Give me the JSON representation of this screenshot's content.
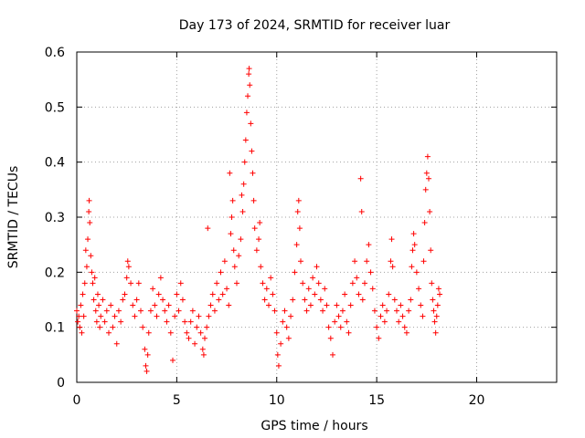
{
  "chart_data": {
    "type": "scatter",
    "title": "Day 173 of 2024, SRMTID for receiver luar",
    "xlabel": "GPS time / hours",
    "ylabel": "SRMTID / TECUs",
    "xlim": [
      0,
      24
    ],
    "ylim": [
      0,
      0.6
    ],
    "xticks": [
      0,
      5,
      10,
      15,
      20
    ],
    "xtick_labels": [
      "0",
      "5",
      "10",
      "15",
      "20"
    ],
    "yticks": [
      0,
      0.1,
      0.2,
      0.3,
      0.4,
      0.5,
      0.6
    ],
    "ytick_labels": [
      "0",
      "0.1",
      "0.2",
      "0.3",
      "0.4",
      "0.5",
      "0.6"
    ],
    "grid": true,
    "marker": "plus",
    "color": "#ff0000",
    "series": [
      {
        "name": "SRMTID",
        "points": [
          [
            0.0,
            0.13
          ],
          [
            0.05,
            0.11
          ],
          [
            0.1,
            0.12
          ],
          [
            0.15,
            0.1
          ],
          [
            0.2,
            0.14
          ],
          [
            0.25,
            0.09
          ],
          [
            0.3,
            0.16
          ],
          [
            0.35,
            0.12
          ],
          [
            0.4,
            0.18
          ],
          [
            0.45,
            0.24
          ],
          [
            0.5,
            0.21
          ],
          [
            0.55,
            0.26
          ],
          [
            0.6,
            0.31
          ],
          [
            0.62,
            0.33
          ],
          [
            0.65,
            0.29
          ],
          [
            0.7,
            0.23
          ],
          [
            0.75,
            0.2
          ],
          [
            0.8,
            0.18
          ],
          [
            0.85,
            0.15
          ],
          [
            0.9,
            0.19
          ],
          [
            0.95,
            0.13
          ],
          [
            1.0,
            0.11
          ],
          [
            1.05,
            0.16
          ],
          [
            1.1,
            0.14
          ],
          [
            1.15,
            0.1
          ],
          [
            1.2,
            0.12
          ],
          [
            1.3,
            0.15
          ],
          [
            1.4,
            0.11
          ],
          [
            1.5,
            0.13
          ],
          [
            1.6,
            0.09
          ],
          [
            1.7,
            0.14
          ],
          [
            1.8,
            0.1
          ],
          [
            1.9,
            0.12
          ],
          [
            2.0,
            0.07
          ],
          [
            2.1,
            0.13
          ],
          [
            2.2,
            0.11
          ],
          [
            2.3,
            0.15
          ],
          [
            2.4,
            0.16
          ],
          [
            2.5,
            0.19
          ],
          [
            2.55,
            0.22
          ],
          [
            2.6,
            0.21
          ],
          [
            2.7,
            0.18
          ],
          [
            2.8,
            0.14
          ],
          [
            2.9,
            0.12
          ],
          [
            3.0,
            0.15
          ],
          [
            3.1,
            0.18
          ],
          [
            3.2,
            0.13
          ],
          [
            3.3,
            0.1
          ],
          [
            3.4,
            0.06
          ],
          [
            3.45,
            0.03
          ],
          [
            3.5,
            0.02
          ],
          [
            3.55,
            0.05
          ],
          [
            3.6,
            0.09
          ],
          [
            3.7,
            0.13
          ],
          [
            3.8,
            0.17
          ],
          [
            3.9,
            0.14
          ],
          [
            4.0,
            0.12
          ],
          [
            4.1,
            0.16
          ],
          [
            4.2,
            0.19
          ],
          [
            4.3,
            0.15
          ],
          [
            4.4,
            0.13
          ],
          [
            4.5,
            0.11
          ],
          [
            4.6,
            0.14
          ],
          [
            4.7,
            0.09
          ],
          [
            4.8,
            0.04
          ],
          [
            4.9,
            0.12
          ],
          [
            5.0,
            0.16
          ],
          [
            5.1,
            0.13
          ],
          [
            5.2,
            0.18
          ],
          [
            5.3,
            0.15
          ],
          [
            5.4,
            0.11
          ],
          [
            5.5,
            0.09
          ],
          [
            5.6,
            0.08
          ],
          [
            5.7,
            0.11
          ],
          [
            5.8,
            0.13
          ],
          [
            5.9,
            0.07
          ],
          [
            6.0,
            0.1
          ],
          [
            6.1,
            0.12
          ],
          [
            6.2,
            0.09
          ],
          [
            6.3,
            0.06
          ],
          [
            6.35,
            0.05
          ],
          [
            6.4,
            0.08
          ],
          [
            6.5,
            0.1
          ],
          [
            6.55,
            0.28
          ],
          [
            6.6,
            0.12
          ],
          [
            6.7,
            0.14
          ],
          [
            6.8,
            0.16
          ],
          [
            6.9,
            0.13
          ],
          [
            7.0,
            0.18
          ],
          [
            7.1,
            0.15
          ],
          [
            7.2,
            0.2
          ],
          [
            7.3,
            0.16
          ],
          [
            7.4,
            0.22
          ],
          [
            7.5,
            0.17
          ],
          [
            7.6,
            0.14
          ],
          [
            7.65,
            0.38
          ],
          [
            7.7,
            0.27
          ],
          [
            7.75,
            0.3
          ],
          [
            7.8,
            0.33
          ],
          [
            7.85,
            0.24
          ],
          [
            7.9,
            0.21
          ],
          [
            8.0,
            0.18
          ],
          [
            8.1,
            0.23
          ],
          [
            8.2,
            0.26
          ],
          [
            8.25,
            0.34
          ],
          [
            8.3,
            0.31
          ],
          [
            8.35,
            0.36
          ],
          [
            8.4,
            0.4
          ],
          [
            8.45,
            0.44
          ],
          [
            8.5,
            0.49
          ],
          [
            8.55,
            0.52
          ],
          [
            8.6,
            0.56
          ],
          [
            8.62,
            0.57
          ],
          [
            8.65,
            0.54
          ],
          [
            8.7,
            0.47
          ],
          [
            8.75,
            0.42
          ],
          [
            8.8,
            0.38
          ],
          [
            8.85,
            0.33
          ],
          [
            8.9,
            0.28
          ],
          [
            9.0,
            0.24
          ],
          [
            9.1,
            0.26
          ],
          [
            9.15,
            0.29
          ],
          [
            9.2,
            0.21
          ],
          [
            9.3,
            0.18
          ],
          [
            9.4,
            0.15
          ],
          [
            9.5,
            0.17
          ],
          [
            9.6,
            0.14
          ],
          [
            9.7,
            0.19
          ],
          [
            9.8,
            0.16
          ],
          [
            9.9,
            0.13
          ],
          [
            10.0,
            0.09
          ],
          [
            10.05,
            0.05
          ],
          [
            10.1,
            0.03
          ],
          [
            10.2,
            0.07
          ],
          [
            10.3,
            0.11
          ],
          [
            10.4,
            0.13
          ],
          [
            10.5,
            0.1
          ],
          [
            10.6,
            0.08
          ],
          [
            10.7,
            0.12
          ],
          [
            10.8,
            0.15
          ],
          [
            10.9,
            0.2
          ],
          [
            11.0,
            0.25
          ],
          [
            11.05,
            0.31
          ],
          [
            11.1,
            0.33
          ],
          [
            11.15,
            0.28
          ],
          [
            11.2,
            0.22
          ],
          [
            11.3,
            0.18
          ],
          [
            11.4,
            0.15
          ],
          [
            11.5,
            0.13
          ],
          [
            11.6,
            0.17
          ],
          [
            11.7,
            0.14
          ],
          [
            11.8,
            0.19
          ],
          [
            11.9,
            0.16
          ],
          [
            12.0,
            0.21
          ],
          [
            12.1,
            0.18
          ],
          [
            12.2,
            0.15
          ],
          [
            12.3,
            0.13
          ],
          [
            12.4,
            0.17
          ],
          [
            12.5,
            0.14
          ],
          [
            12.6,
            0.1
          ],
          [
            12.7,
            0.08
          ],
          [
            12.8,
            0.05
          ],
          [
            12.9,
            0.11
          ],
          [
            13.0,
            0.14
          ],
          [
            13.1,
            0.12
          ],
          [
            13.2,
            0.1
          ],
          [
            13.3,
            0.13
          ],
          [
            13.4,
            0.16
          ],
          [
            13.5,
            0.11
          ],
          [
            13.6,
            0.09
          ],
          [
            13.7,
            0.14
          ],
          [
            13.8,
            0.18
          ],
          [
            13.9,
            0.22
          ],
          [
            14.0,
            0.19
          ],
          [
            14.1,
            0.16
          ],
          [
            14.2,
            0.37
          ],
          [
            14.25,
            0.31
          ],
          [
            14.3,
            0.15
          ],
          [
            14.4,
            0.18
          ],
          [
            14.5,
            0.22
          ],
          [
            14.6,
            0.25
          ],
          [
            14.7,
            0.2
          ],
          [
            14.8,
            0.17
          ],
          [
            14.9,
            0.13
          ],
          [
            15.0,
            0.1
          ],
          [
            15.1,
            0.08
          ],
          [
            15.2,
            0.12
          ],
          [
            15.3,
            0.14
          ],
          [
            15.4,
            0.11
          ],
          [
            15.5,
            0.13
          ],
          [
            15.6,
            0.16
          ],
          [
            15.7,
            0.22
          ],
          [
            15.75,
            0.26
          ],
          [
            15.8,
            0.21
          ],
          [
            15.9,
            0.15
          ],
          [
            16.0,
            0.13
          ],
          [
            16.1,
            0.11
          ],
          [
            16.2,
            0.14
          ],
          [
            16.3,
            0.12
          ],
          [
            16.4,
            0.1
          ],
          [
            16.5,
            0.09
          ],
          [
            16.6,
            0.13
          ],
          [
            16.7,
            0.15
          ],
          [
            16.75,
            0.21
          ],
          [
            16.8,
            0.24
          ],
          [
            16.85,
            0.27
          ],
          [
            16.9,
            0.25
          ],
          [
            17.0,
            0.2
          ],
          [
            17.1,
            0.17
          ],
          [
            17.2,
            0.14
          ],
          [
            17.3,
            0.12
          ],
          [
            17.35,
            0.22
          ],
          [
            17.4,
            0.29
          ],
          [
            17.45,
            0.35
          ],
          [
            17.5,
            0.38
          ],
          [
            17.55,
            0.41
          ],
          [
            17.6,
            0.37
          ],
          [
            17.65,
            0.31
          ],
          [
            17.7,
            0.24
          ],
          [
            17.75,
            0.18
          ],
          [
            17.8,
            0.15
          ],
          [
            17.85,
            0.13
          ],
          [
            17.9,
            0.11
          ],
          [
            17.95,
            0.09
          ],
          [
            18.0,
            0.12
          ],
          [
            18.05,
            0.14
          ],
          [
            18.1,
            0.17
          ],
          [
            18.15,
            0.16
          ]
        ]
      }
    ]
  }
}
